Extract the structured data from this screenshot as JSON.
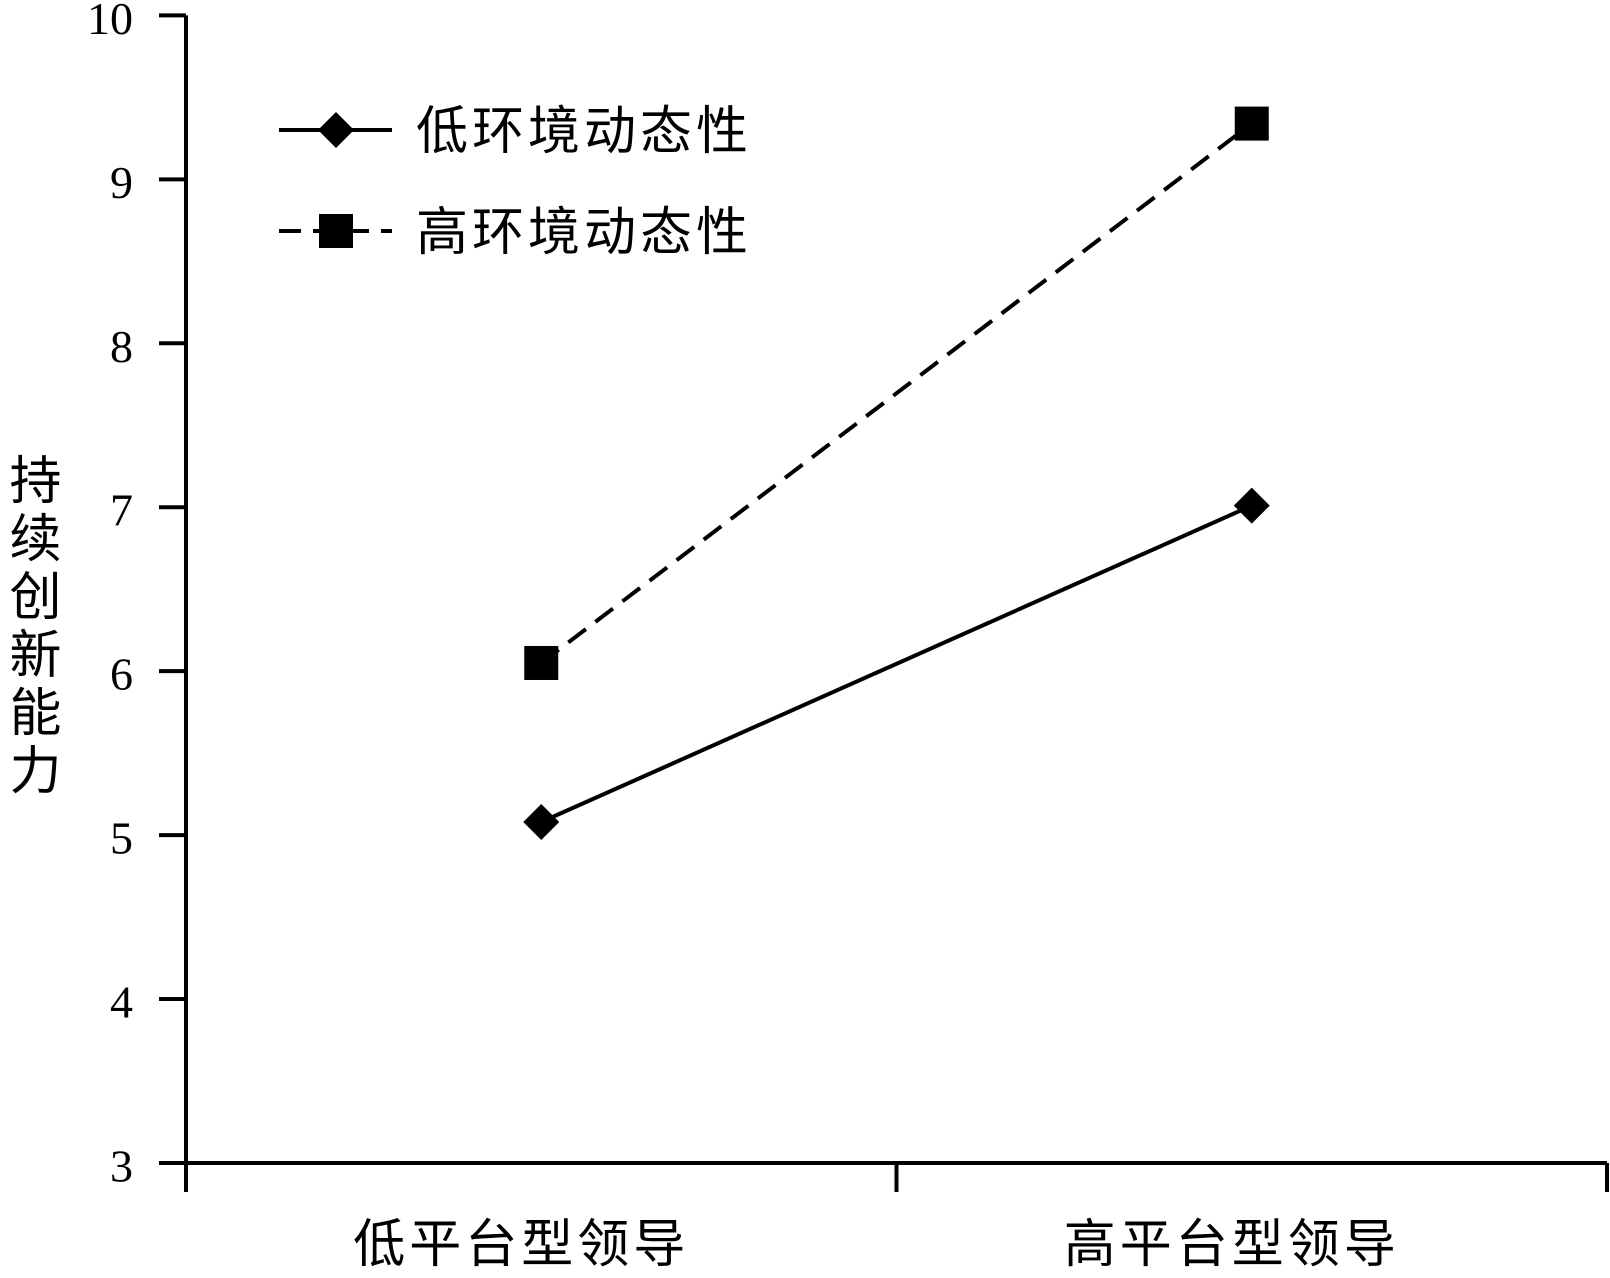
{
  "chart_data": {
    "type": "line",
    "categories": [
      "低平台型领导",
      "高平台型领导"
    ],
    "series": [
      {
        "name": "低环境动态性",
        "values": [
          5.08,
          7.01
        ],
        "line_style": "solid",
        "marker": "diamond"
      },
      {
        "name": "高环境动态性",
        "values": [
          6.05,
          9.34
        ],
        "line_style": "dashed",
        "marker": "square"
      }
    ],
    "xlabel": "",
    "ylabel": "持续创新能力",
    "ylim": [
      3,
      10
    ],
    "yticks": [
      "3",
      "4",
      "5",
      "6",
      "7",
      "8",
      "9",
      "10"
    ],
    "grid": false,
    "legend": "top-left",
    "colors": {
      "axis": "#000000",
      "series": "#000000"
    }
  }
}
